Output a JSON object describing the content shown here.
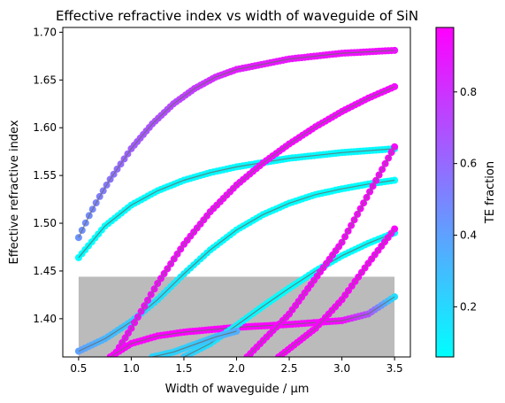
{
  "chart_data": {
    "type": "scatter",
    "title": "Effective refractive index vs width of waveguide of SiN",
    "xlabel": "Width of waveguide / µm",
    "ylabel": "Effective refractive index",
    "xlim": [
      0.35,
      3.65
    ],
    "ylim": [
      1.36,
      1.705
    ],
    "xticks": [
      "0.5",
      "1.0",
      "1.5",
      "2.0",
      "2.5",
      "3.0",
      "3.5"
    ],
    "yticks": [
      "1.40",
      "1.45",
      "1.50",
      "1.55",
      "1.60",
      "1.65",
      "1.70"
    ],
    "colorbar": {
      "label": "TE fraction",
      "range": [
        0.06,
        0.98
      ],
      "ticks": [
        "0.2",
        "0.4",
        "0.6",
        "0.8"
      ],
      "colormap": "cool",
      "color_low": "#00ffff",
      "color_high": "#ff00ff"
    },
    "shaded_region": {
      "x": [
        0.5,
        3.5
      ],
      "y": [
        1.36,
        1.444
      ],
      "color": "#bbbbbb"
    },
    "grid": false,
    "legend": "none",
    "series": [
      {
        "x": [
          0.5,
          0.6,
          0.7,
          0.8,
          0.9,
          1.0,
          1.2,
          1.4,
          1.6,
          1.8,
          2.0,
          2.5,
          3.0,
          3.5
        ],
        "neff": [
          1.485,
          1.508,
          1.528,
          1.546,
          1.562,
          1.578,
          1.604,
          1.625,
          1.641,
          1.653,
          1.661,
          1.672,
          1.678,
          1.681
        ],
        "te": [
          0.45,
          0.48,
          0.52,
          0.56,
          0.6,
          0.64,
          0.68,
          0.72,
          0.77,
          0.82,
          0.87,
          0.9,
          0.92,
          0.92
        ]
      },
      {
        "x": [
          0.5,
          0.75,
          1.0,
          1.25,
          1.5,
          1.75,
          2.0,
          2.5,
          3.0,
          3.5
        ],
        "neff": [
          1.464,
          1.497,
          1.519,
          1.534,
          1.545,
          1.553,
          1.559,
          1.568,
          1.574,
          1.578
        ],
        "te": [
          0.06,
          0.06,
          0.07,
          0.07,
          0.08,
          0.08,
          0.08,
          0.08,
          0.08,
          0.08
        ]
      },
      {
        "x": [
          0.5,
          0.75,
          1.0,
          1.25,
          1.5,
          1.75,
          2.0,
          2.25,
          2.5,
          2.75,
          3.0,
          3.25,
          3.5
        ],
        "neff": [
          1.366,
          1.379,
          1.397,
          1.42,
          1.447,
          1.472,
          1.493,
          1.509,
          1.521,
          1.53,
          1.536,
          1.541,
          1.545
        ],
        "te": [
          0.4,
          0.33,
          0.25,
          0.18,
          0.12,
          0.08,
          0.06,
          0.06,
          0.06,
          0.06,
          0.06,
          0.06,
          0.06
        ]
      },
      {
        "x": [
          0.8,
          1.0,
          1.25,
          1.5,
          1.75,
          2.0,
          2.25,
          2.5,
          2.75,
          3.0,
          3.25,
          3.5
        ],
        "neff": [
          1.355,
          1.39,
          1.437,
          1.478,
          1.512,
          1.54,
          1.563,
          1.583,
          1.601,
          1.617,
          1.631,
          1.643
        ],
        "te": [
          0.94,
          0.94,
          0.94,
          0.94,
          0.94,
          0.94,
          0.94,
          0.94,
          0.94,
          0.94,
          0.94,
          0.94
        ]
      },
      {
        "x": [
          0.8,
          1.0,
          1.25,
          1.5,
          2.0,
          2.5,
          3.0,
          3.25,
          3.5
        ],
        "neff": [
          1.36,
          1.374,
          1.382,
          1.386,
          1.391,
          1.394,
          1.398,
          1.405,
          1.423
        ],
        "te": [
          0.97,
          0.97,
          0.97,
          0.97,
          0.97,
          0.96,
          0.93,
          0.7,
          0.18
        ]
      },
      {
        "x": [
          1.5,
          1.75,
          2.0,
          2.25,
          2.5,
          2.75,
          3.0,
          3.25,
          3.5
        ],
        "neff": [
          1.36,
          1.374,
          1.393,
          1.413,
          1.432,
          1.45,
          1.466,
          1.479,
          1.49
        ],
        "te": [
          0.25,
          0.18,
          0.12,
          0.08,
          0.06,
          0.06,
          0.06,
          0.06,
          0.06
        ]
      },
      {
        "x": [
          2.1,
          2.5,
          3.0,
          3.5
        ],
        "neff": [
          1.36,
          1.405,
          1.48,
          1.58
        ],
        "te": [
          0.96,
          0.96,
          0.96,
          0.96
        ]
      },
      {
        "x": [
          2.4,
          2.75,
          3.0,
          3.25,
          3.5
        ],
        "neff": [
          1.36,
          1.39,
          1.42,
          1.458,
          1.494
        ],
        "te": [
          0.97,
          0.97,
          0.97,
          0.97,
          0.97
        ]
      },
      {
        "x": [
          1.2,
          1.4,
          1.6,
          1.8,
          2.0
        ],
        "neff": [
          1.36,
          1.365,
          1.373,
          1.381,
          1.387
        ],
        "te": [
          0.22,
          0.22,
          0.25,
          0.3,
          0.35
        ]
      }
    ]
  }
}
